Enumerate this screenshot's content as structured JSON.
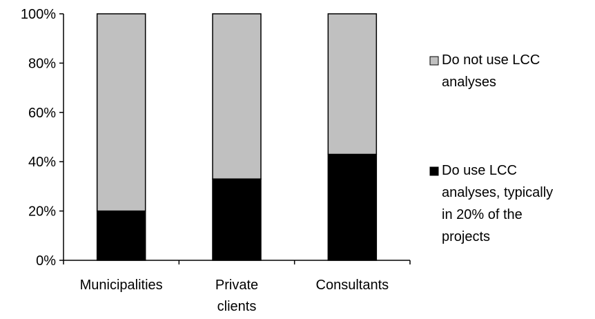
{
  "chart_data": {
    "type": "bar",
    "stacked": true,
    "title": "",
    "xlabel": "",
    "ylabel": "",
    "ylim": [
      0,
      100
    ],
    "y_ticks": [
      "0%",
      "20%",
      "40%",
      "60%",
      "80%",
      "100%"
    ],
    "categories": [
      [
        "Municipalities"
      ],
      [
        "Private",
        "clients"
      ],
      [
        "Consultants"
      ]
    ],
    "series": [
      {
        "name": [
          "Do use LCC",
          "analyses, typically",
          "in 20% of the",
          "projects"
        ],
        "color": "#000000",
        "values": [
          20,
          33,
          43
        ]
      },
      {
        "name": [
          "Do not use LCC",
          "analyses"
        ],
        "color": "#c0c0c0",
        "values": [
          80,
          67,
          57
        ]
      }
    ],
    "legend_position": "right",
    "grid": false
  }
}
